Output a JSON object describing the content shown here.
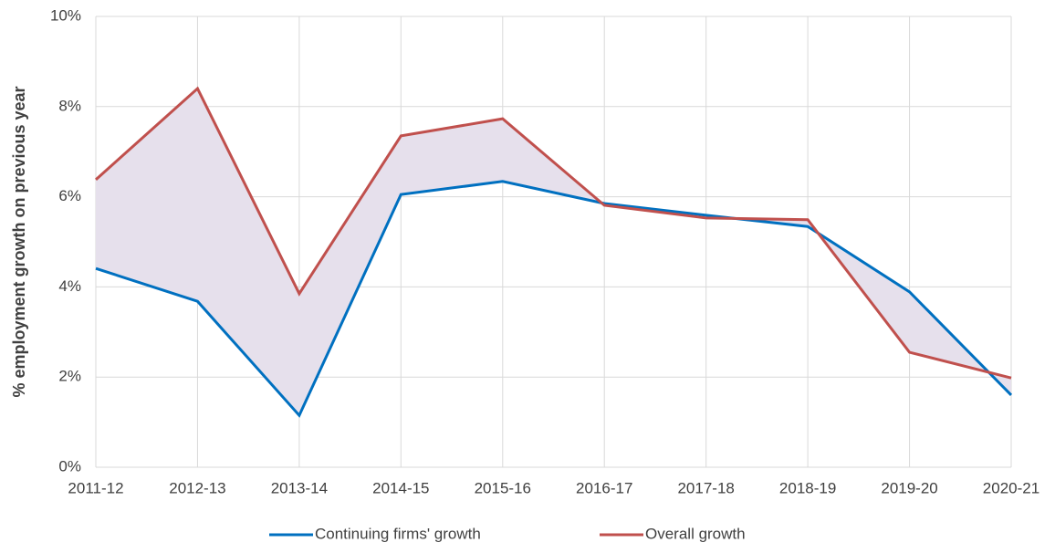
{
  "chart_data": {
    "type": "line",
    "y_label": "% employment growth on previous year",
    "categories": [
      "2011-12",
      "2012-13",
      "2013-14",
      "2014-15",
      "2015-16",
      "2016-17",
      "2017-18",
      "2018-19",
      "2019-20",
      "2020-21"
    ],
    "series": [
      {
        "name": "Continuing firms' growth",
        "color": "#0070c0",
        "values": [
          4.41,
          3.68,
          1.15,
          6.05,
          6.34,
          5.85,
          5.59,
          5.34,
          3.89,
          1.6
        ]
      },
      {
        "name": "Overall growth",
        "color": "#c0504d",
        "values": [
          6.38,
          8.4,
          3.85,
          7.35,
          7.73,
          5.81,
          5.53,
          5.49,
          2.55,
          1.98
        ]
      }
    ],
    "fill_between_color": "#e6e0ec",
    "ylim": [
      0,
      10
    ],
    "yticks": [
      {
        "value": 0,
        "label": "0%"
      },
      {
        "value": 2,
        "label": "2%"
      },
      {
        "value": 4,
        "label": "4%"
      },
      {
        "value": 6,
        "label": "6%"
      },
      {
        "value": 8,
        "label": "8%"
      },
      {
        "value": 10,
        "label": "10%"
      }
    ],
    "grid": true,
    "legend": "bottom"
  }
}
